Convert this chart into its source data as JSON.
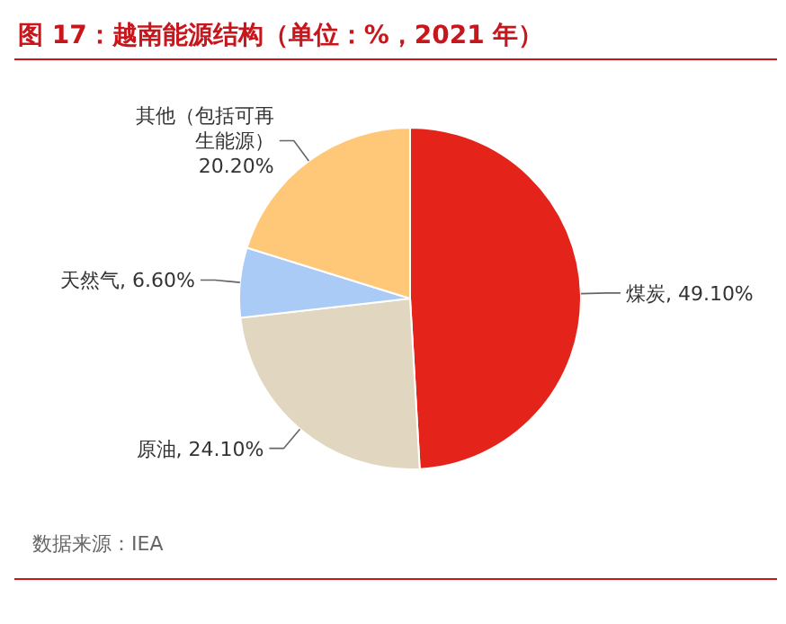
{
  "chart_data": {
    "type": "pie",
    "title": "图 17：越南能源结构（单位：%，2021 年）",
    "categories": [
      "煤炭",
      "原油",
      "天然气",
      "其他（包括可再生能源）"
    ],
    "values": [
      49.1,
      24.1,
      6.6,
      20.2
    ],
    "value_labels": [
      "49.10%",
      "24.10%",
      "6.60%",
      "20.20%"
    ],
    "colors": [
      "#e4231b",
      "#e1d6bf",
      "#a9cbf5",
      "#ffc878"
    ],
    "annotations": [
      "数据来源：IEA"
    ]
  }
}
